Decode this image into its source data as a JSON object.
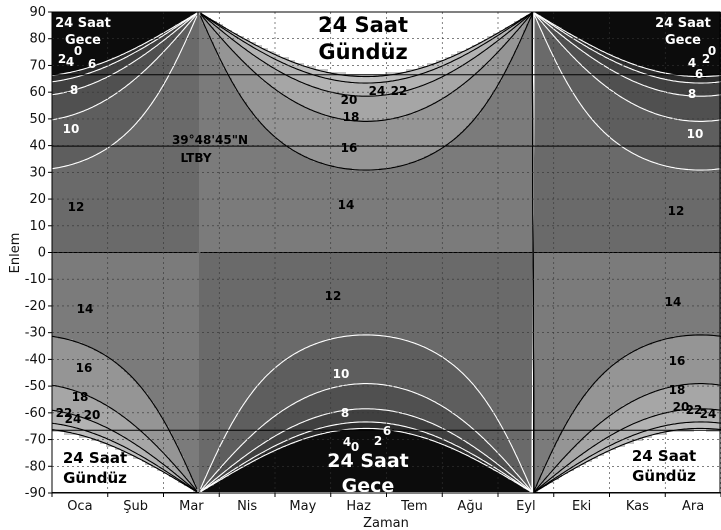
{
  "chart_data": {
    "type": "heatmap",
    "title": "",
    "xlabel": "Zaman",
    "ylabel": "Enlem",
    "months": [
      "Oca",
      "Şub",
      "Mar",
      "Nis",
      "May",
      "Haz",
      "Tem",
      "Ağu",
      "Eyl",
      "Eki",
      "Kas",
      "Ara"
    ],
    "ylim": [
      -90,
      90
    ],
    "yticks": [
      90,
      80,
      70,
      60,
      50,
      40,
      30,
      20,
      10,
      0,
      -10,
      -20,
      -30,
      -40,
      -50,
      -60,
      -70,
      -80,
      -90
    ],
    "grid": true,
    "reference_lines": [
      {
        "latitude": 66.5
      },
      {
        "latitude": 39.8
      },
      {
        "latitude": -66.5
      }
    ],
    "marker": {
      "latitude": 39.8,
      "label_line1": "39°48'45\"N",
      "label_line2": "LTBY"
    },
    "contour_levels_hours": [
      0,
      2,
      4,
      6,
      8,
      10,
      12,
      14,
      16,
      18,
      20,
      22,
      24
    ],
    "contour_labels_top_left": [
      "2",
      "4",
      "0",
      "6",
      "8",
      "10",
      "12"
    ],
    "contour_labels_top_right": [
      "0",
      "2",
      "4",
      "6",
      "8",
      "10",
      "12"
    ],
    "contour_labels_top_center": [
      "24",
      "22",
      "20",
      "18",
      "16",
      "14"
    ],
    "contour_labels_bottom_left": [
      "14",
      "16",
      "18",
      "20",
      "22",
      "24"
    ],
    "contour_labels_bottom_right": [
      "14",
      "16",
      "18",
      "20",
      "22",
      "24"
    ],
    "contour_labels_bottom_center": [
      "12",
      "10",
      "8",
      "6",
      "4",
      "2",
      "0"
    ],
    "regions": {
      "polar_night_nw": [
        "24 Saat",
        "Gece"
      ],
      "polar_night_ne": [
        "24 Saat",
        "Gece"
      ],
      "polar_day_north": [
        "24 Saat",
        "Gündüz"
      ],
      "polar_day_sw": [
        "24 Saat",
        "Gündüz"
      ],
      "polar_day_se": [
        "24 Saat",
        "Gündüz"
      ],
      "polar_night_south": [
        "24 Saat",
        "Gece"
      ]
    },
    "colors": {
      "band_0_2": "#0c0c0c",
      "band_2_4": "#2d2d2d",
      "band_4_6": "#404040",
      "band_6_8": "#505050",
      "band_8_10": "#5e5e5e",
      "band_10_12": "#6a6a6a",
      "band_12_14": "#7b7b7b",
      "band_14_16": "#959595",
      "band_16_18": "#a6a6a6",
      "band_18_20": "#b3b3b3",
      "band_20_22": "#bdbdbd",
      "band_22_24": "#c6c6c6",
      "polar_day": "#ffffff",
      "long_night_contour": "#ffffff",
      "long_day_contour": "#000000"
    }
  }
}
